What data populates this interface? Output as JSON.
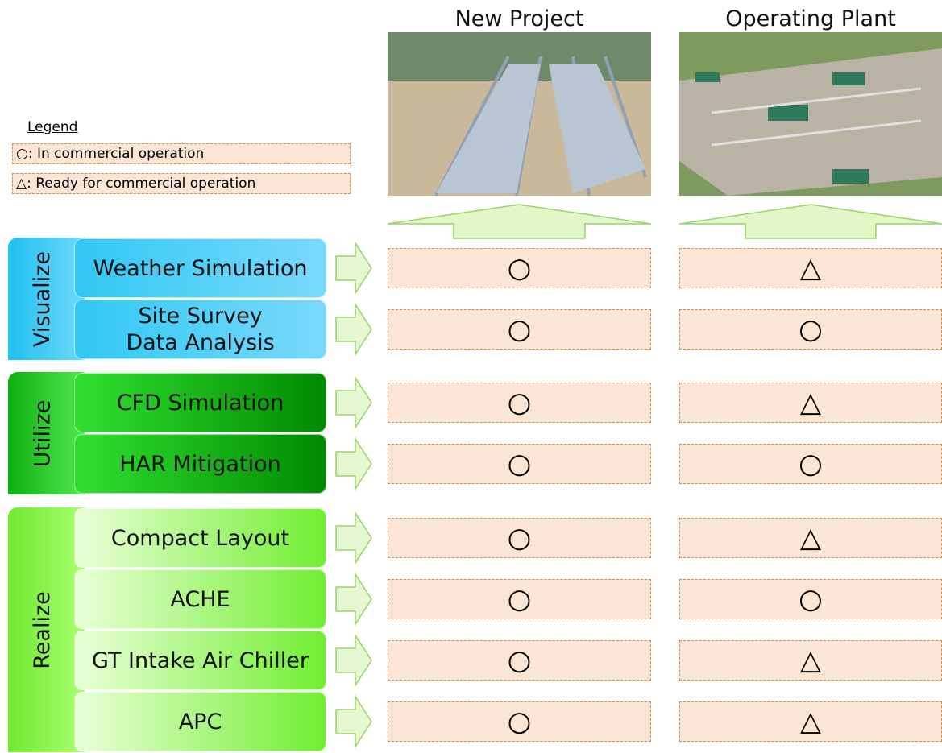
{
  "legend": {
    "title": "Legend",
    "items": [
      "○: In commercial  operation",
      "△: Ready for commercial  operation"
    ]
  },
  "columns": [
    "New Project",
    "Operating Plant"
  ],
  "groups": [
    {
      "label": "Visualize",
      "rows": [
        {
          "lines": [
            "Weather Simulation"
          ],
          "status": [
            "○",
            "△"
          ]
        },
        {
          "lines": [
            "Site Survey",
            "Data Analysis"
          ],
          "status": [
            "○",
            "○"
          ]
        }
      ]
    },
    {
      "label": "Utilize",
      "rows": [
        {
          "lines": [
            "CFD Simulation"
          ],
          "status": [
            "○",
            "△"
          ]
        },
        {
          "lines": [
            "HAR Mitigation"
          ],
          "status": [
            "○",
            "○"
          ]
        }
      ]
    },
    {
      "label": "Realize",
      "rows": [
        {
          "lines": [
            "Compact Layout"
          ],
          "status": [
            "○",
            "△"
          ]
        },
        {
          "lines": [
            "ACHE"
          ],
          "status": [
            "○",
            "○"
          ]
        },
        {
          "lines": [
            "GT Intake Air Chiller"
          ],
          "status": [
            "○",
            "△"
          ]
        },
        {
          "lines": [
            "APC"
          ],
          "status": [
            "○",
            "△"
          ]
        }
      ]
    }
  ]
}
